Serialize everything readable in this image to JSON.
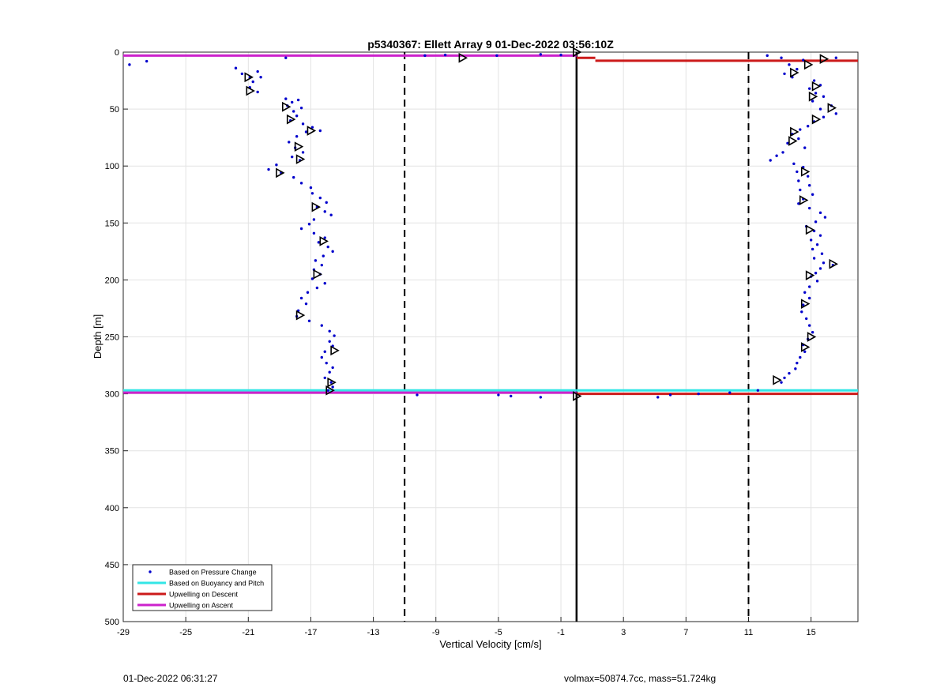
{
  "chart_data": {
    "type": "scatter",
    "title": "p5340367: Ellett Array 9 01-Dec-2022 03:56:10Z",
    "xlabel": "Vertical Velocity [cm/s]",
    "ylabel": "Depth [m]",
    "xlim": [
      -29,
      18
    ],
    "ylim": [
      0,
      500
    ],
    "y_reversed": true,
    "grid": true,
    "x_ticks": [
      -29,
      -25,
      -21,
      -17,
      -13,
      -9,
      -5,
      -1,
      3,
      7,
      11,
      15
    ],
    "y_ticks": [
      0,
      50,
      100,
      150,
      200,
      250,
      300,
      350,
      400,
      450,
      500
    ],
    "legend_position": "bottom-left",
    "legend": [
      {
        "label": "Based on Pressure Change",
        "color": "#0000cc",
        "style": "dot"
      },
      {
        "label": "Based on Buoyancy and Pitch",
        "color": "#33e6e6",
        "style": "line"
      },
      {
        "label": "Upwelling on Descent",
        "color": "#cc1a1a",
        "style": "line"
      },
      {
        "label": "Upwelling on Ascent",
        "color": "#cc22cc",
        "style": "line"
      }
    ],
    "reference_lines": {
      "solid_x": 0,
      "dashed_x": [
        -11,
        11
      ]
    },
    "buoyancy_pitch_lines": [
      {
        "x1": -29,
        "x2": 0,
        "depth": 297
      },
      {
        "x1": 0,
        "x2": 18,
        "depth": 297
      }
    ],
    "descent_upwelling_lines": [
      {
        "x1": 0,
        "x2": 1.2,
        "depth": 5
      },
      {
        "x1": 1.2,
        "x2": 18,
        "depth": 7.5
      },
      {
        "x1": 0,
        "x2": 18,
        "depth": 300
      }
    ],
    "ascent_upwelling_lines": [
      {
        "x1": -29,
        "x2": 0,
        "depth": 3
      },
      {
        "x1": -29,
        "x2": 0,
        "depth": 299
      }
    ],
    "series": [
      {
        "name": "Based on Pressure Change",
        "points": [
          [
            -28.6,
            11
          ],
          [
            -27.5,
            8
          ],
          [
            -18.6,
            5
          ],
          [
            -9.7,
            3
          ],
          [
            -8.4,
            2.5
          ],
          [
            -5.1,
            3
          ],
          [
            -2.3,
            2
          ],
          [
            -1,
            2.5
          ],
          [
            -21.8,
            14
          ],
          [
            -21.4,
            19
          ],
          [
            -20.9,
            22
          ],
          [
            -20.4,
            17
          ],
          [
            -20.2,
            22
          ],
          [
            -20.7,
            26
          ],
          [
            -20.9,
            31
          ],
          [
            -20.4,
            35
          ],
          [
            -18.6,
            41
          ],
          [
            -18.2,
            44
          ],
          [
            -17.8,
            42
          ],
          [
            -18.5,
            47
          ],
          [
            -18.1,
            52
          ],
          [
            -17.6,
            49
          ],
          [
            -17.9,
            56
          ],
          [
            -18.3,
            60
          ],
          [
            -17.5,
            63
          ],
          [
            -16.9,
            66
          ],
          [
            -17.3,
            70
          ],
          [
            -16.4,
            69
          ],
          [
            -17.9,
            74
          ],
          [
            -18.4,
            79
          ],
          [
            -18.0,
            84
          ],
          [
            -17.5,
            88
          ],
          [
            -18.2,
            92
          ],
          [
            -17.7,
            95
          ],
          [
            -19.2,
            99
          ],
          [
            -19.7,
            103
          ],
          [
            -18.9,
            106
          ],
          [
            -18.1,
            110
          ],
          [
            -17.6,
            115
          ],
          [
            -17.0,
            119
          ],
          [
            -16.9,
            124
          ],
          [
            -16.4,
            128
          ],
          [
            -16.0,
            132
          ],
          [
            -16.6,
            136
          ],
          [
            -16.1,
            140
          ],
          [
            -15.7,
            143
          ],
          [
            -16.8,
            147
          ],
          [
            -17.1,
            151
          ],
          [
            -17.6,
            155
          ],
          [
            -16.8,
            159
          ],
          [
            -16.1,
            163
          ],
          [
            -16.5,
            167
          ],
          [
            -15.9,
            171
          ],
          [
            -15.6,
            175
          ],
          [
            -16.2,
            179
          ],
          [
            -16.7,
            183
          ],
          [
            -16.3,
            187
          ],
          [
            -16.8,
            191
          ],
          [
            -16.4,
            195
          ],
          [
            -16.9,
            199
          ],
          [
            -16.1,
            203
          ],
          [
            -16.6,
            207
          ],
          [
            -17.2,
            211
          ],
          [
            -17.6,
            216
          ],
          [
            -17.3,
            221
          ],
          [
            -17.8,
            227
          ],
          [
            -17.9,
            232
          ],
          [
            -17.1,
            236
          ],
          [
            -16.3,
            240
          ],
          [
            -15.8,
            245
          ],
          [
            -15.5,
            249
          ],
          [
            -15.8,
            254
          ],
          [
            -15.6,
            258
          ],
          [
            -16.1,
            263
          ],
          [
            -16.3,
            268
          ],
          [
            -16.0,
            273
          ],
          [
            -15.6,
            277
          ],
          [
            -15.8,
            281
          ],
          [
            -16.1,
            286
          ],
          [
            -15.7,
            290
          ],
          [
            -15.6,
            294
          ],
          [
            -15.9,
            297
          ],
          [
            -10.2,
            301
          ],
          [
            -5.0,
            301
          ],
          [
            -4.2,
            302
          ],
          [
            -2.3,
            303
          ],
          [
            12.2,
            3
          ],
          [
            13.1,
            5
          ],
          [
            14.5,
            7
          ],
          [
            16.6,
            5
          ],
          [
            13.6,
            11
          ],
          [
            14.1,
            15
          ],
          [
            13.3,
            19
          ],
          [
            13.8,
            22
          ],
          [
            15.2,
            25
          ],
          [
            15.6,
            29
          ],
          [
            14.9,
            32
          ],
          [
            15.3,
            36
          ],
          [
            15.8,
            39
          ],
          [
            15.1,
            43
          ],
          [
            16.3,
            47
          ],
          [
            15.6,
            50
          ],
          [
            16.6,
            54
          ],
          [
            15.8,
            57
          ],
          [
            15.2,
            61
          ],
          [
            14.8,
            65
          ],
          [
            14.3,
            68
          ],
          [
            13.8,
            72
          ],
          [
            14.2,
            76
          ],
          [
            13.5,
            80
          ],
          [
            14.6,
            84
          ],
          [
            13.2,
            88
          ],
          [
            12.8,
            91
          ],
          [
            12.4,
            95
          ],
          [
            13.9,
            98
          ],
          [
            14.5,
            101
          ],
          [
            14.1,
            105
          ],
          [
            14.8,
            109
          ],
          [
            14.2,
            113
          ],
          [
            14.9,
            117
          ],
          [
            14.3,
            121
          ],
          [
            15.1,
            125
          ],
          [
            14.5,
            129
          ],
          [
            14.2,
            133
          ],
          [
            14.9,
            137
          ],
          [
            15.6,
            141
          ],
          [
            15.9,
            145
          ],
          [
            15.3,
            149
          ],
          [
            14.7,
            153
          ],
          [
            15.2,
            157
          ],
          [
            15.6,
            161
          ],
          [
            15.0,
            165
          ],
          [
            15.4,
            169
          ],
          [
            15.1,
            173
          ],
          [
            15.7,
            177
          ],
          [
            15.2,
            181
          ],
          [
            15.8,
            185
          ],
          [
            16.4,
            187
          ],
          [
            15.6,
            190
          ],
          [
            15.3,
            194
          ],
          [
            15.0,
            197
          ],
          [
            15.4,
            201
          ],
          [
            14.9,
            206
          ],
          [
            14.6,
            211
          ],
          [
            14.9,
            216
          ],
          [
            14.5,
            222
          ],
          [
            14.4,
            228
          ],
          [
            14.7,
            234
          ],
          [
            14.9,
            240
          ],
          [
            15.1,
            246
          ],
          [
            14.8,
            252
          ],
          [
            14.5,
            257
          ],
          [
            14.6,
            263
          ],
          [
            14.3,
            268
          ],
          [
            14.1,
            273
          ],
          [
            14.0,
            278
          ],
          [
            13.6,
            282
          ],
          [
            13.3,
            286
          ],
          [
            13.1,
            290
          ],
          [
            11.6,
            297
          ],
          [
            9.8,
            299
          ],
          [
            7.8,
            300
          ],
          [
            6.0,
            301
          ],
          [
            5.2,
            303
          ]
        ]
      },
      {
        "name": "Upward Triangles",
        "points": [
          [
            -21.0,
            22
          ],
          [
            -20.9,
            34
          ],
          [
            -18.6,
            48
          ],
          [
            -18.3,
            59
          ],
          [
            -17.0,
            69
          ],
          [
            -17.8,
            83
          ],
          [
            -17.7,
            94
          ],
          [
            -19.0,
            106
          ],
          [
            -16.7,
            136
          ],
          [
            -16.2,
            166
          ],
          [
            -16.6,
            195
          ],
          [
            -17.7,
            231
          ],
          [
            -15.5,
            262
          ],
          [
            -15.7,
            290
          ],
          [
            -15.8,
            297
          ],
          [
            -7.3,
            5
          ],
          [
            0.0,
            0
          ],
          [
            0.0,
            302
          ],
          [
            15.8,
            6
          ],
          [
            14.8,
            11
          ],
          [
            13.9,
            18
          ],
          [
            15.3,
            30
          ],
          [
            15.1,
            39
          ],
          [
            16.3,
            49
          ],
          [
            15.3,
            59
          ],
          [
            13.9,
            70
          ],
          [
            13.8,
            78
          ],
          [
            14.6,
            105
          ],
          [
            14.5,
            130
          ],
          [
            14.9,
            156
          ],
          [
            16.4,
            186
          ],
          [
            14.9,
            196
          ],
          [
            14.6,
            221
          ],
          [
            15.0,
            250
          ],
          [
            14.6,
            259
          ],
          [
            12.8,
            288
          ]
        ]
      }
    ]
  },
  "footer": {
    "timestamp": "01-Dec-2022 06:31:27",
    "volmax_mass": "volmax=50874.7cc, mass=51.724kg"
  }
}
